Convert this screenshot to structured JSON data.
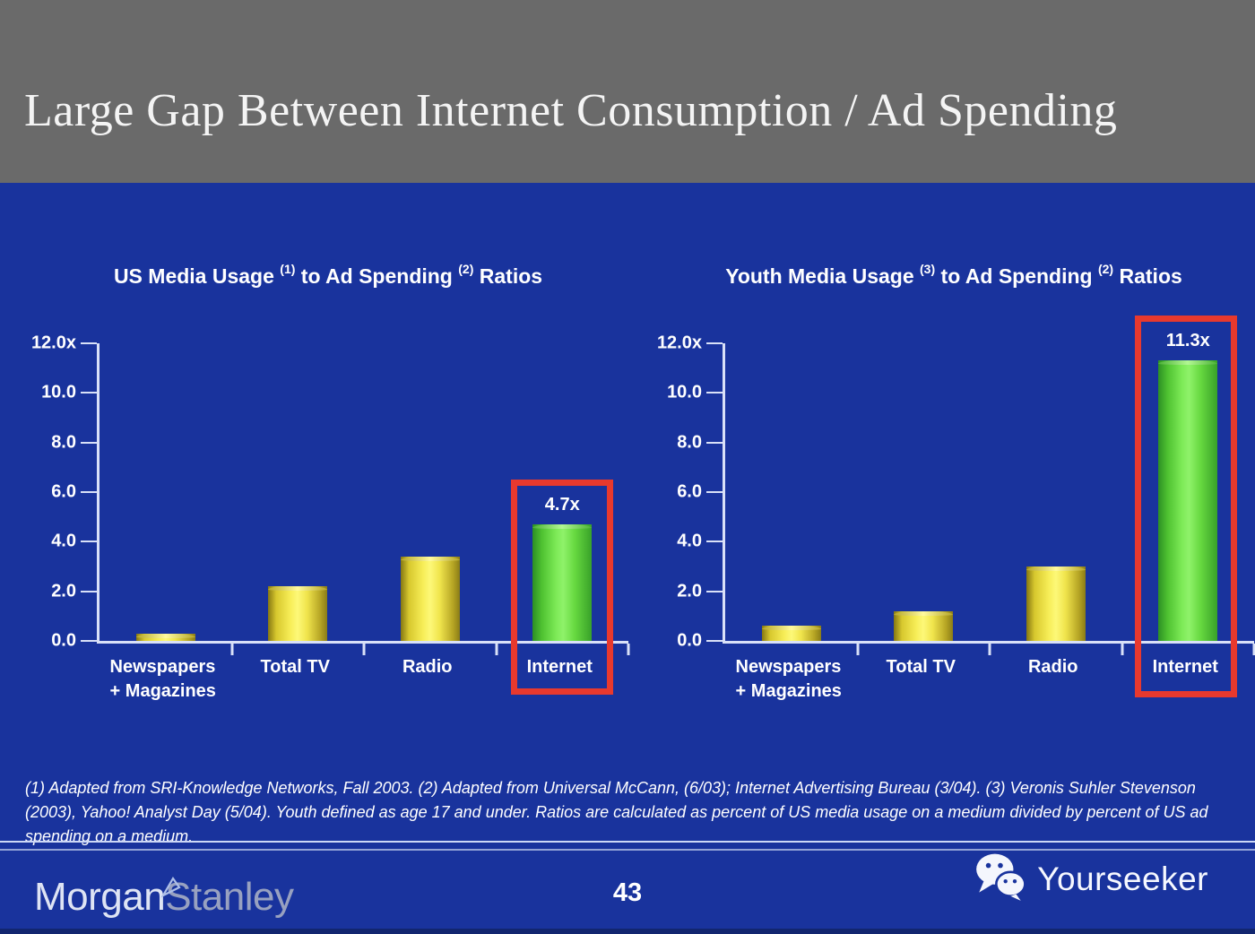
{
  "slide": {
    "title": "Large Gap Between Internet Consumption / Ad Spending",
    "page_number": "43"
  },
  "chart_data": [
    {
      "type": "bar",
      "title": "US Media Usage (1) to Ad Spending (2) Ratios",
      "title_segments": [
        "US Media Usage ",
        "(1)",
        " to Ad Spending ",
        "(2)",
        " Ratios"
      ],
      "categories": [
        "Newspapers + Magazines",
        "Total TV",
        "Radio",
        "Internet"
      ],
      "cat_lines": [
        [
          "Newspapers",
          "+ Magazines"
        ],
        [
          "Total TV"
        ],
        [
          "Radio"
        ],
        [
          "Internet"
        ]
      ],
      "values": [
        0.3,
        2.2,
        3.4,
        4.7
      ],
      "yticks": [
        "12.0x",
        "10.0",
        "8.0",
        "6.0",
        "4.0",
        "2.0",
        "0.0"
      ],
      "ylim": [
        0,
        12
      ],
      "grid": false,
      "legend": "none",
      "highlight_index": 3,
      "annotation": "4.7x",
      "bar_color_default": "#f2e84a",
      "bar_color_highlight": "#5fd43c",
      "highlight_box_color": "#e8392e"
    },
    {
      "type": "bar",
      "title": "Youth Media Usage (3) to Ad Spending (2) Ratios",
      "title_segments": [
        "Youth Media Usage ",
        "(3)",
        " to Ad Spending ",
        "(2)",
        " Ratios"
      ],
      "categories": [
        "Newspapers + Magazines",
        "Total TV",
        "Radio",
        "Internet"
      ],
      "cat_lines": [
        [
          "Newspapers",
          "+ Magazines"
        ],
        [
          "Total TV"
        ],
        [
          "Radio"
        ],
        [
          "Internet"
        ]
      ],
      "values": [
        0.6,
        1.2,
        3.0,
        11.3
      ],
      "yticks": [
        "12.0x",
        "10.0",
        "8.0",
        "6.0",
        "4.0",
        "2.0",
        "0.0"
      ],
      "ylim": [
        0,
        12
      ],
      "grid": false,
      "legend": "none",
      "highlight_index": 3,
      "annotation": "11.3x",
      "bar_color_default": "#f2e84a",
      "bar_color_highlight": "#5fd43c",
      "highlight_box_color": "#e8392e"
    }
  ],
  "footnote": "(1) Adapted from SRI-Knowledge Networks, Fall 2003.  (2) Adapted from Universal McCann, (6/03); Internet Advertising Bureau (3/04). (3) Veronis Suhler Stevenson (2003), Yahoo! Analyst Day (5/04).  Youth defined as age 17 and under.  Ratios are calculated as percent of US media usage on a medium divided by percent of US ad spending on a medium.",
  "footer": {
    "brand_morgan": "Morgan",
    "brand_stanley": "Stanley",
    "watermark": "Yourseeker"
  },
  "icons": {
    "wechat": "wechat-logo",
    "ms_flag": "morgan-stanley-flag"
  },
  "colors": {
    "background": "#19339d",
    "header_gray": "#6a6a6a",
    "axis": "#d9e1f8",
    "bar_yellow": "#f2e84a",
    "bar_green": "#5fd43c",
    "highlight_red": "#e8392e"
  }
}
